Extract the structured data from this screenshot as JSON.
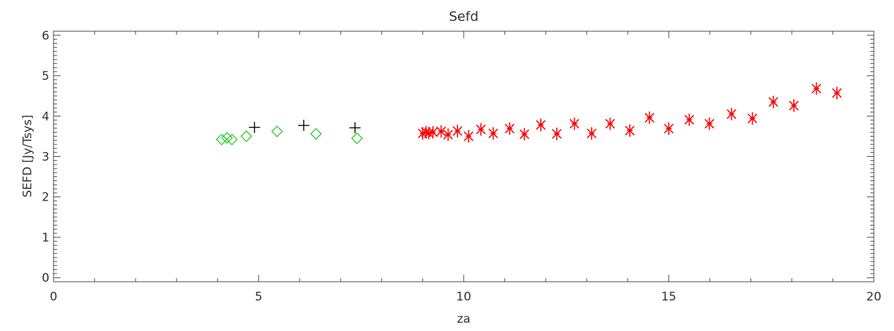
{
  "chart_data": {
    "type": "scatter",
    "title": "Sefd",
    "xlabel": "za",
    "ylabel": "SEFD [Jy/Tsys]",
    "xlim": [
      0,
      20
    ],
    "ylim": [
      -0.1,
      6.1
    ],
    "x_ticks": [
      0,
      5,
      10,
      15,
      20
    ],
    "y_ticks": [
      0,
      1,
      2,
      3,
      4,
      5,
      6
    ],
    "grid": false,
    "legend": "none",
    "series": [
      {
        "marker": "diamond",
        "color": "#22cc22",
        "points": [
          [
            4.1,
            3.42
          ],
          [
            4.23,
            3.46
          ],
          [
            4.35,
            3.42
          ],
          [
            4.7,
            3.5
          ],
          [
            5.45,
            3.62
          ],
          [
            6.4,
            3.56
          ],
          [
            7.4,
            3.45
          ]
        ]
      },
      {
        "marker": "plus",
        "color": "#000000",
        "points": [
          [
            4.9,
            3.72
          ],
          [
            6.1,
            3.77
          ],
          [
            7.35,
            3.71
          ]
        ]
      },
      {
        "marker": "asterisk",
        "color": "#ff0000",
        "points": [
          [
            9.0,
            3.57
          ],
          [
            9.08,
            3.6
          ],
          [
            9.15,
            3.58
          ],
          [
            9.25,
            3.6
          ],
          [
            9.45,
            3.62
          ],
          [
            9.62,
            3.54
          ],
          [
            9.85,
            3.63
          ],
          [
            10.12,
            3.5
          ],
          [
            10.42,
            3.67
          ],
          [
            10.72,
            3.57
          ],
          [
            11.12,
            3.69
          ],
          [
            11.48,
            3.55
          ],
          [
            11.88,
            3.78
          ],
          [
            12.27,
            3.56
          ],
          [
            12.7,
            3.81
          ],
          [
            13.12,
            3.57
          ],
          [
            13.57,
            3.81
          ],
          [
            14.05,
            3.64
          ],
          [
            14.53,
            3.96
          ],
          [
            15.0,
            3.69
          ],
          [
            15.5,
            3.91
          ],
          [
            15.99,
            3.81
          ],
          [
            16.53,
            4.05
          ],
          [
            17.04,
            3.94
          ],
          [
            17.55,
            4.35
          ],
          [
            18.05,
            4.26
          ],
          [
            18.6,
            4.68
          ],
          [
            19.1,
            4.57
          ]
        ]
      }
    ]
  }
}
